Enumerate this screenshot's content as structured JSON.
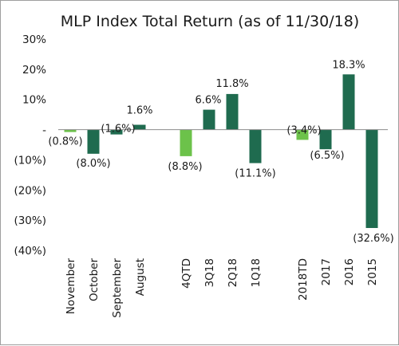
{
  "chart_data": {
    "type": "bar",
    "title": "MLP Index Total Return (as of 11/30/18)",
    "ylim": [
      -40,
      30
    ],
    "yticks": [
      30,
      20,
      10,
      0,
      -10,
      -20,
      -30,
      -40
    ],
    "ytick_labels": [
      "30%",
      "20%",
      "10%",
      "-",
      "(10%)",
      "(20%)",
      "(30%)",
      "(40%)"
    ],
    "grid": false,
    "legend": "none",
    "colors": {
      "light": "#6cc24a",
      "dark": "#1f6b4f"
    },
    "categories": [
      "November",
      "October",
      "September",
      "August",
      "4QTD",
      "3Q18",
      "2Q18",
      "1Q18",
      "2018TD",
      "2017",
      "2016",
      "2015"
    ],
    "values": [
      -0.8,
      -8.0,
      -1.6,
      1.6,
      -8.8,
      6.6,
      11.8,
      -11.1,
      -3.4,
      -6.5,
      18.3,
      -32.6
    ],
    "data_labels": [
      "(0.8%)",
      "(8.0%)",
      "(1.6%)",
      "1.6%",
      "(8.8%)",
      "6.6%",
      "11.8%",
      "(11.1%)",
      "(3.4%)",
      "(6.5%)",
      "18.3%",
      "(32.6%)"
    ],
    "bar_colors": [
      "light",
      "dark",
      "dark",
      "dark",
      "light",
      "dark",
      "dark",
      "dark",
      "light",
      "dark",
      "dark",
      "dark"
    ]
  }
}
